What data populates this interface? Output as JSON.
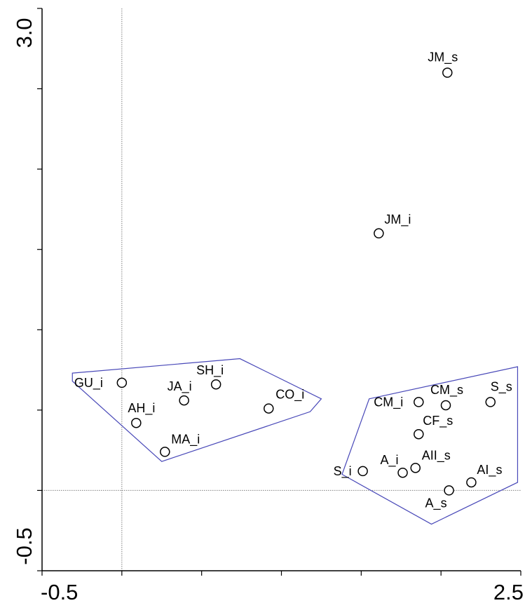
{
  "chart_data": {
    "type": "scatter",
    "title": "",
    "xlabel": "",
    "ylabel": "",
    "xlim": [
      -0.5,
      2.5
    ],
    "ylim": [
      -0.5,
      3.0
    ],
    "x_tick_labels": [
      {
        "value": -0.5,
        "label": "-0.5"
      },
      {
        "value": 2.5,
        "label": "2.5"
      }
    ],
    "y_tick_labels": [
      {
        "value": -0.5,
        "label": "-0.5"
      },
      {
        "value": 3.0,
        "label": "3.0"
      }
    ],
    "x_minor_ticks": [
      -0.5,
      0.0,
      0.5,
      1.0,
      1.5,
      2.0,
      2.5
    ],
    "y_minor_ticks": [
      -0.5,
      0.0,
      0.5,
      1.0,
      1.5,
      2.0,
      2.5,
      3.0
    ],
    "reference_lines": {
      "x": 0,
      "y": 0
    },
    "grid": false,
    "points": [
      {
        "label": "JM_s",
        "x": 2.04,
        "y": 2.6
      },
      {
        "label": "JM_i",
        "x": 1.61,
        "y": 1.6
      },
      {
        "label": "GU_i",
        "x": 0.0,
        "y": 0.67
      },
      {
        "label": "SH_i",
        "x": 0.59,
        "y": 0.66
      },
      {
        "label": "JA_i",
        "x": 0.39,
        "y": 0.56
      },
      {
        "label": "CO_i",
        "x": 0.92,
        "y": 0.51
      },
      {
        "label": "AH_i",
        "x": 0.09,
        "y": 0.42
      },
      {
        "label": "MA_i",
        "x": 0.27,
        "y": 0.24
      },
      {
        "label": "CM_i",
        "x": 1.86,
        "y": 0.55
      },
      {
        "label": "CM_s",
        "x": 2.03,
        "y": 0.53
      },
      {
        "label": "S_s",
        "x": 2.31,
        "y": 0.55
      },
      {
        "label": "CF_s",
        "x": 1.86,
        "y": 0.35
      },
      {
        "label": "A_i",
        "x": 1.76,
        "y": 0.11
      },
      {
        "label": "AII_s",
        "x": 1.84,
        "y": 0.14
      },
      {
        "label": "S_i",
        "x": 1.51,
        "y": 0.12
      },
      {
        "label": "AI_s",
        "x": 2.19,
        "y": 0.05
      },
      {
        "label": "A_s",
        "x": 2.05,
        "y": 0.0
      }
    ],
    "hulls": [
      {
        "vertices": [
          [
            -0.31,
            0.73
          ],
          [
            0.74,
            0.82
          ],
          [
            1.25,
            0.57
          ],
          [
            1.18,
            0.49
          ],
          [
            0.25,
            0.18
          ],
          [
            -0.31,
            0.68
          ]
        ]
      },
      {
        "vertices": [
          [
            1.55,
            0.57
          ],
          [
            2.48,
            0.77
          ],
          [
            2.48,
            0.05
          ],
          [
            1.94,
            -0.21
          ],
          [
            1.38,
            0.1
          ]
        ]
      }
    ],
    "colors": {
      "hull": "#4848b8",
      "axis": "#000000",
      "reference": "#808080"
    }
  }
}
